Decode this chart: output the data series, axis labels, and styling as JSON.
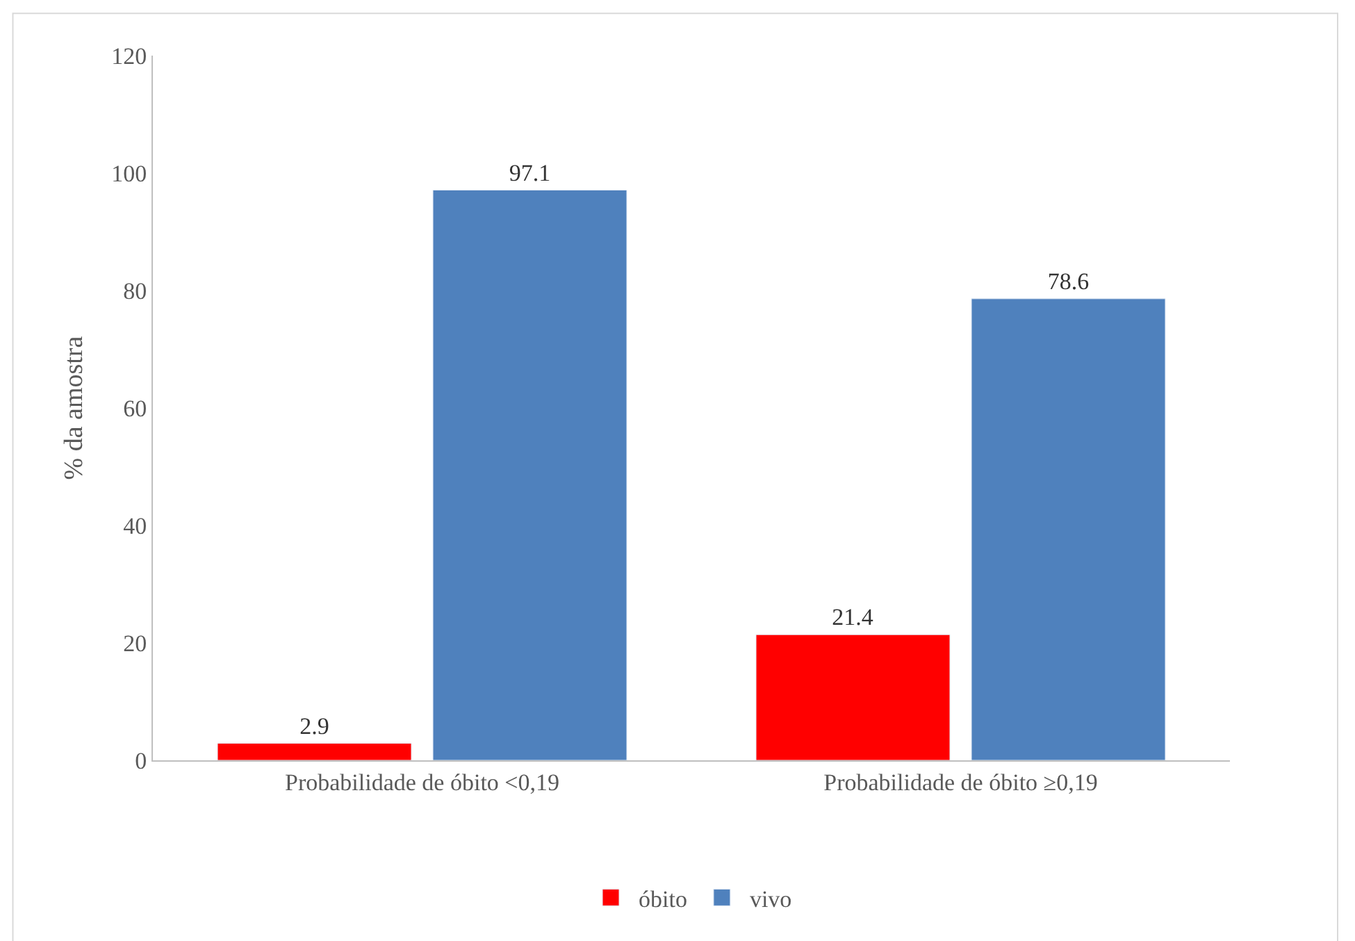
{
  "chart_data": {
    "type": "bar",
    "ylabel": "% da amostra",
    "categories": [
      "Probabilidade de óbito <0,19",
      "Probabilidade de óbito ≥0,19"
    ],
    "series": [
      {
        "name": "óbito",
        "color": "#ff0000",
        "values": [
          2.9,
          21.4
        ]
      },
      {
        "name": "vivo",
        "color": "#4f81bd",
        "values": [
          97.1,
          78.6
        ]
      }
    ],
    "ylim": [
      0,
      120
    ],
    "yticks": [
      0,
      20,
      40,
      60,
      80,
      100,
      120
    ],
    "legend": "bottom",
    "data_labels": true
  }
}
